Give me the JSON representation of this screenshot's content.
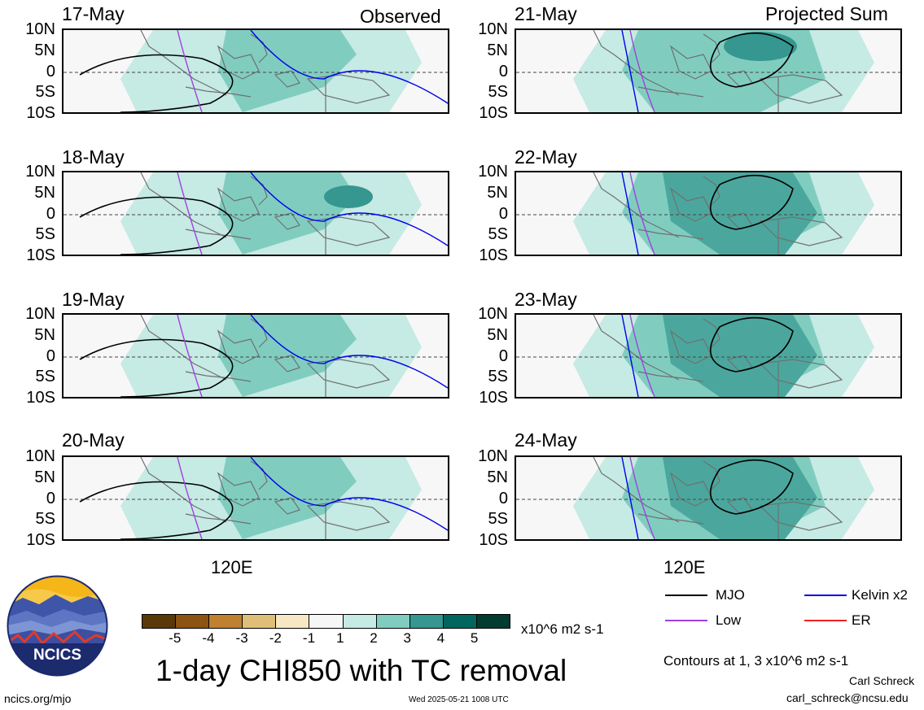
{
  "headers": {
    "left": "Observed",
    "right": "Projected Sum"
  },
  "lat_labels": [
    "10N",
    "5N",
    "0",
    "5S",
    "10S"
  ],
  "panels_left": [
    {
      "date": "17-May"
    },
    {
      "date": "18-May"
    },
    {
      "date": "19-May"
    },
    {
      "date": "20-May"
    }
  ],
  "panels_right": [
    {
      "date": "21-May"
    },
    {
      "date": "22-May"
    },
    {
      "date": "23-May"
    },
    {
      "date": "24-May"
    }
  ],
  "lon_label": "120E",
  "colorbar": {
    "ticks": [
      "-5",
      "-4",
      "-3",
      "-2",
      "-1",
      "1",
      "2",
      "3",
      "4",
      "5"
    ],
    "units": "x10^6 m2 s-1",
    "colors": [
      "#5a3808",
      "#8c5312",
      "#bf8030",
      "#dfbf78",
      "#f6e8c2",
      "#f6f6f6",
      "#c6eae4",
      "#80cdc0",
      "#35978f",
      "#01665e",
      "#003c30"
    ]
  },
  "title": "1-day CHI850 with TC removal",
  "legend": [
    {
      "label": "MJO",
      "color": "#000000"
    },
    {
      "label": "Kelvin x2",
      "color": "#0000ee"
    },
    {
      "label": "Low",
      "color": "#a040e0"
    },
    {
      "label": "ER",
      "color": "#ee2222"
    }
  ],
  "contours_note": "Contours at 1, 3 x10^6 m2 s-1",
  "author": "Carl Schreck",
  "email": "carl_schreck@ncsu.edu",
  "website": "ncics.org/mjo",
  "timestamp": "Wed 2025-05-21 1008 UTC",
  "logo_text": "NCICS"
}
